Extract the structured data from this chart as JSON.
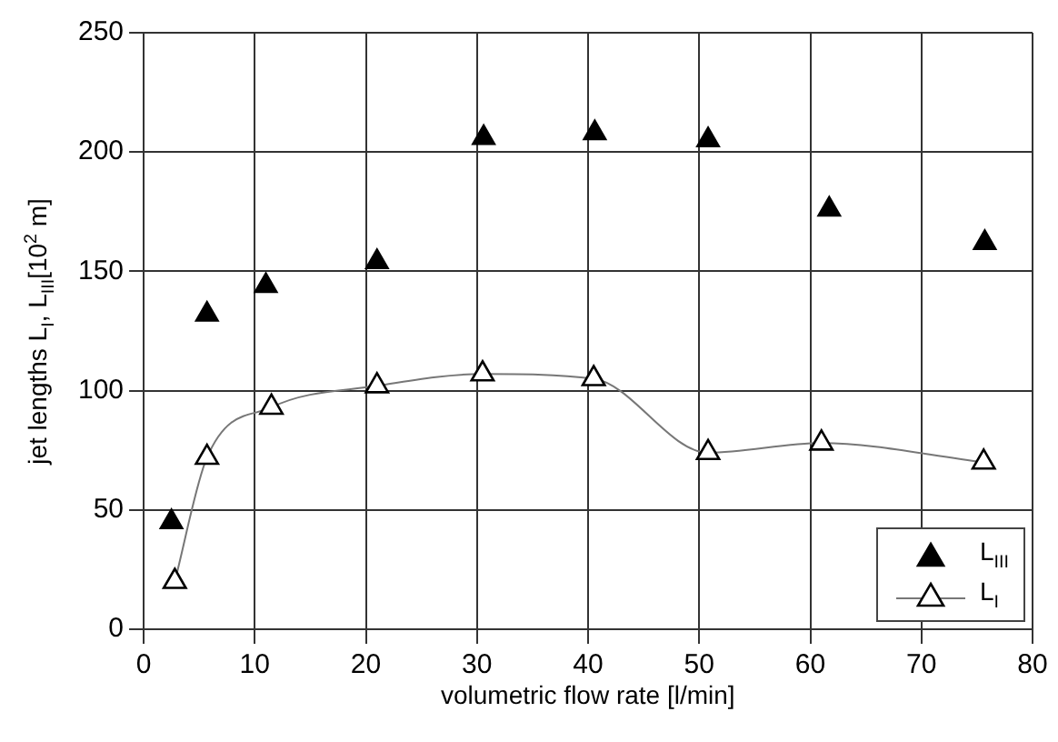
{
  "chart_data": {
    "type": "scatter",
    "xlabel": "volumetric flow rate [l/min]",
    "ylabel": "jet lengths  L$_{I}$, L$_{III}$[10$^{2}$ m]",
    "xlim": [
      0,
      80
    ],
    "xticks": [
      0,
      10,
      20,
      30,
      40,
      50,
      60,
      70,
      80
    ],
    "ylim": [
      0,
      250
    ],
    "yticks": [
      0,
      50,
      100,
      150,
      200,
      250
    ],
    "grid": true,
    "legend": "bottom right",
    "marker": "triangle",
    "series": [
      {
        "name": "L$_{III}$",
        "color": "#000000",
        "x": [
          2.5,
          5.7,
          11,
          21,
          30.6,
          40.6,
          50.8,
          61.7,
          75.7
        ],
        "values": [
          45,
          132,
          144,
          154,
          206,
          208,
          205,
          176,
          162
        ]
      },
      {
        "name": "L$_{I}$",
        "type": "line",
        "color": "#000000",
        "x": [
          2.8,
          5.7,
          11.5,
          21,
          30.5,
          40.5,
          50.8,
          61,
          75.6
        ],
        "values": [
          20,
          72,
          93,
          102,
          107,
          105,
          74,
          78,
          70
        ]
      }
    ]
  }
}
